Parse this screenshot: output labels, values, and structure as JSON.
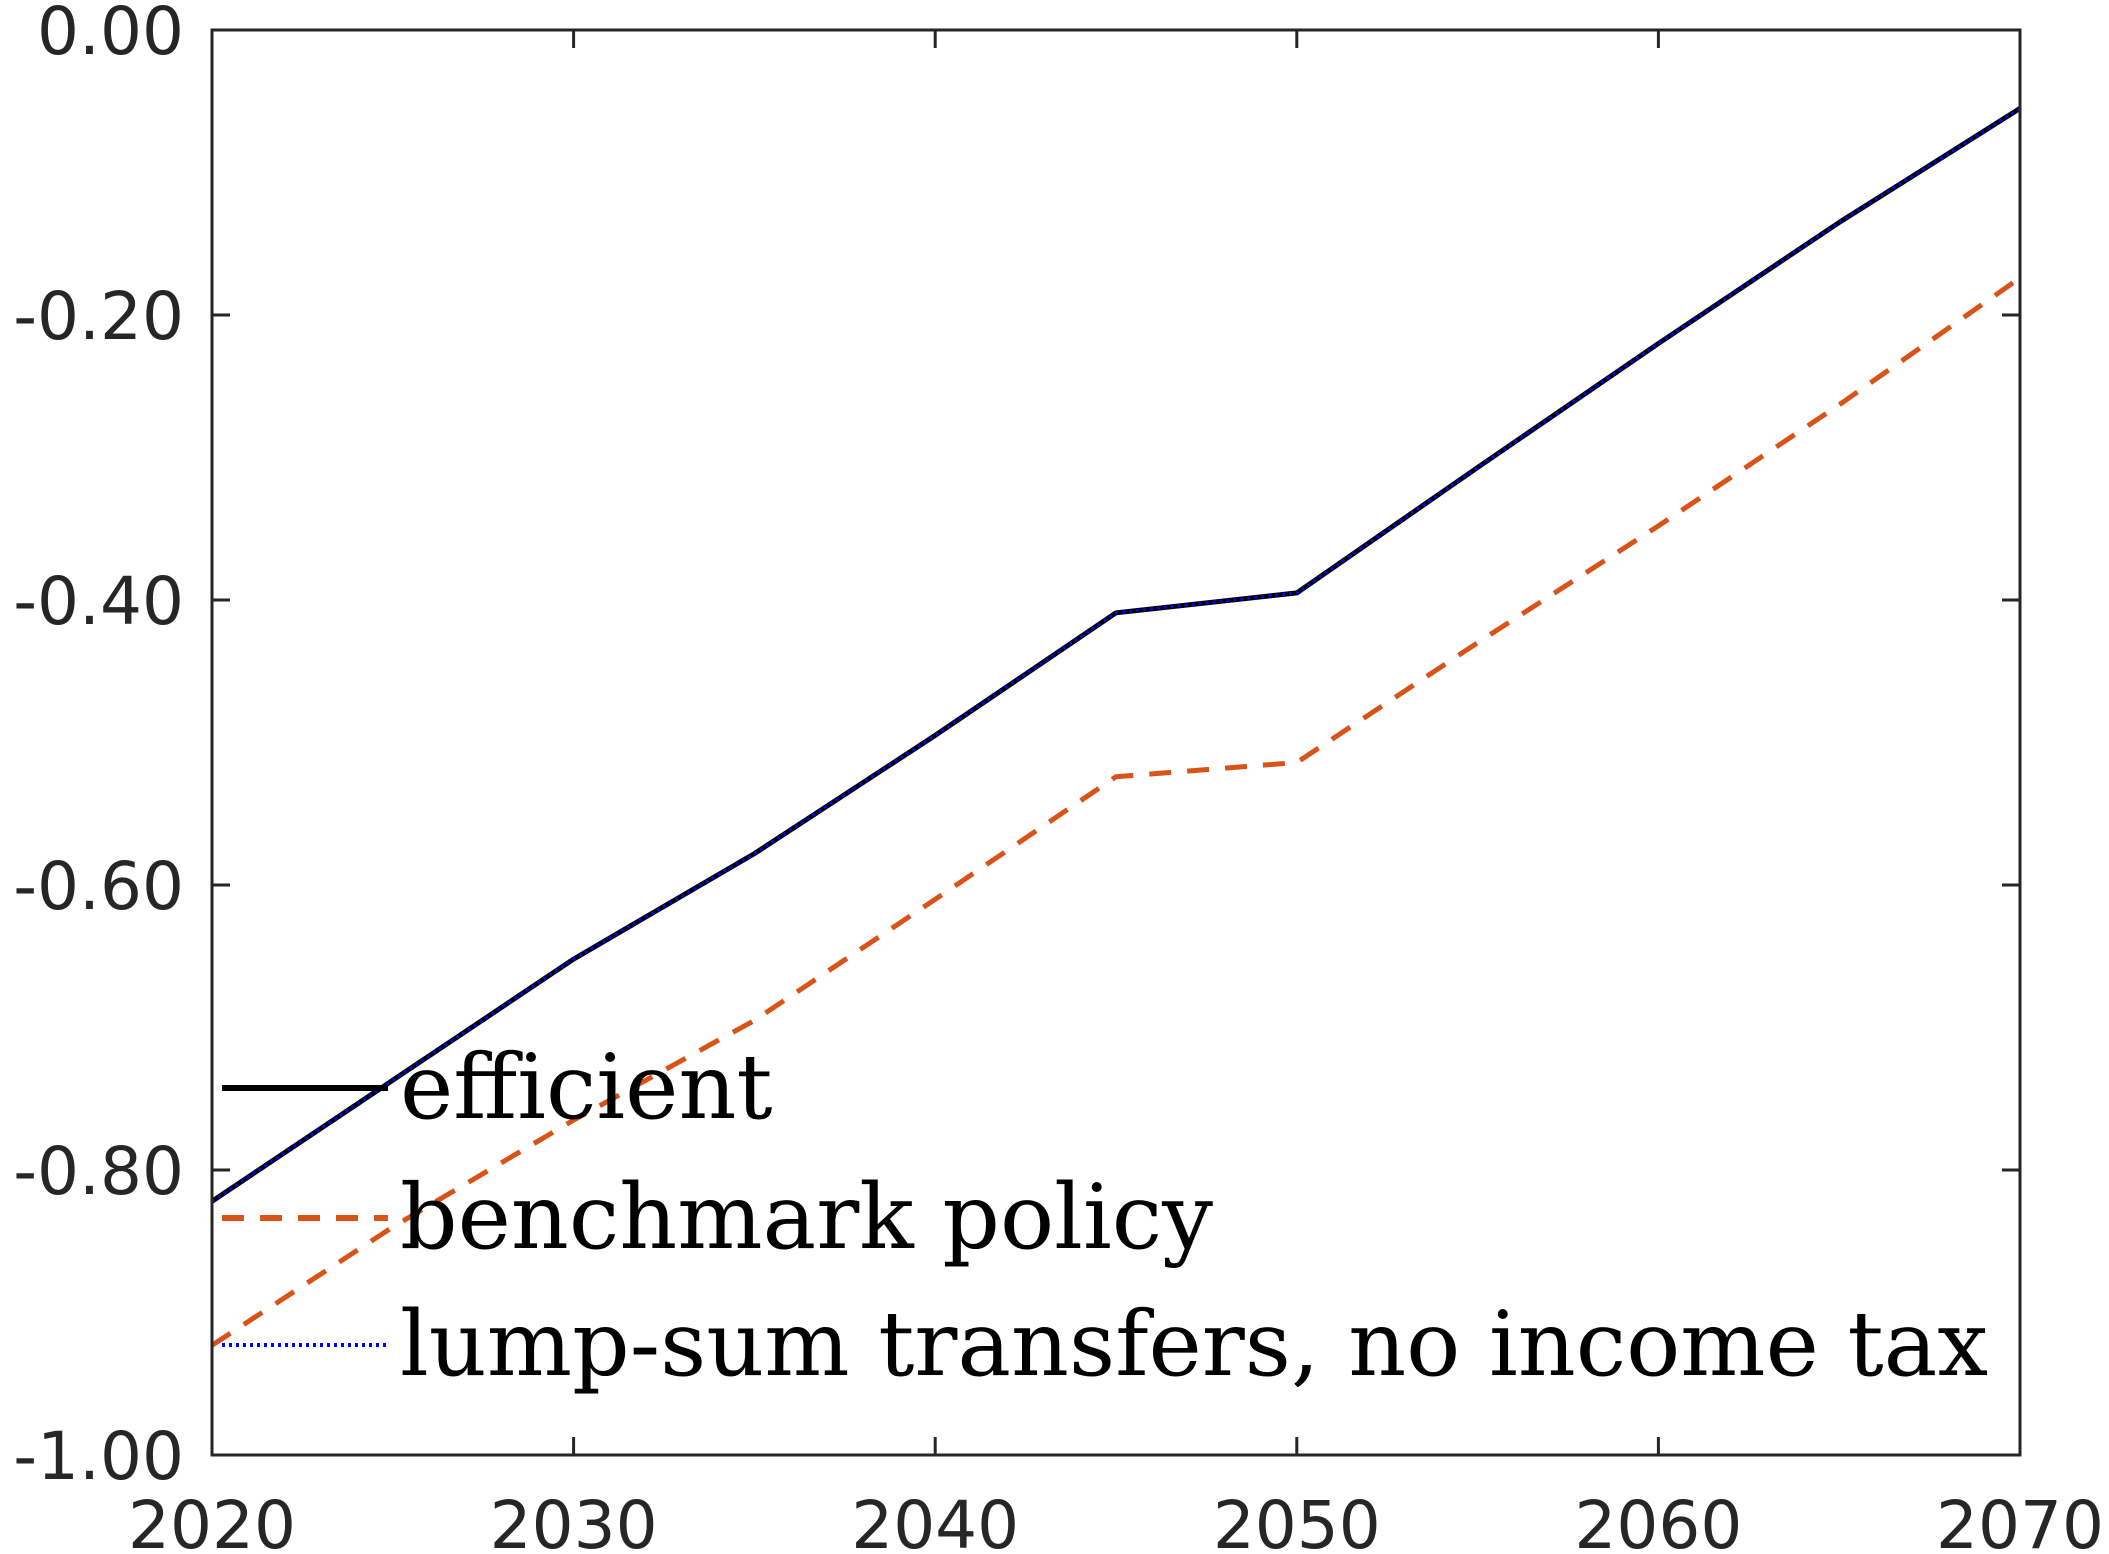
{
  "chart_data": {
    "type": "line",
    "title": "",
    "xlabel": "",
    "ylabel": "",
    "xlim": [
      2020,
      2070
    ],
    "ylim": [
      -1.0,
      0.0
    ],
    "xticks": [
      2020,
      2030,
      2040,
      2050,
      2060,
      2070
    ],
    "xtick_labels": [
      "2020",
      "2030",
      "2040",
      "2050",
      "2060",
      "2070"
    ],
    "yticks": [
      0.0,
      -0.2,
      -0.4,
      -0.6,
      -0.8,
      -1.0
    ],
    "ytick_labels": [
      "0.00",
      "-0.20",
      "-0.40",
      "-0.60",
      "-0.80",
      "-1.00"
    ],
    "grid": false,
    "legend_position": "bottom-left",
    "series": [
      {
        "name": "efficient",
        "color": "#000000",
        "style": "solid",
        "x": [
          2020,
          2025,
          2030,
          2035,
          2040,
          2045,
          2050,
          2055,
          2060,
          2065,
          2070
        ],
        "y": [
          -0.822,
          -0.737,
          -0.652,
          -0.578,
          -0.495,
          -0.409,
          -0.395,
          -0.307,
          -0.22,
          -0.135,
          -0.055
        ]
      },
      {
        "name": "benchmark policy",
        "color": "#D95319",
        "style": "dashed",
        "x": [
          2020,
          2025,
          2030,
          2035,
          2040,
          2045,
          2050,
          2055,
          2060,
          2065,
          2070
        ],
        "y": [
          -0.923,
          -0.84,
          -0.765,
          -0.695,
          -0.61,
          -0.524,
          -0.514,
          -0.43,
          -0.348,
          -0.263,
          -0.174
        ]
      },
      {
        "name": "lump-sum transfers, no income tax",
        "color": "#0000FF",
        "style": "dotted",
        "x": [
          2020,
          2025,
          2030,
          2035,
          2040,
          2045,
          2050,
          2055,
          2060,
          2065,
          2070
        ],
        "y": [
          -0.822,
          -0.737,
          -0.652,
          -0.578,
          -0.495,
          -0.409,
          -0.395,
          -0.307,
          -0.22,
          -0.135,
          -0.055
        ]
      }
    ]
  }
}
